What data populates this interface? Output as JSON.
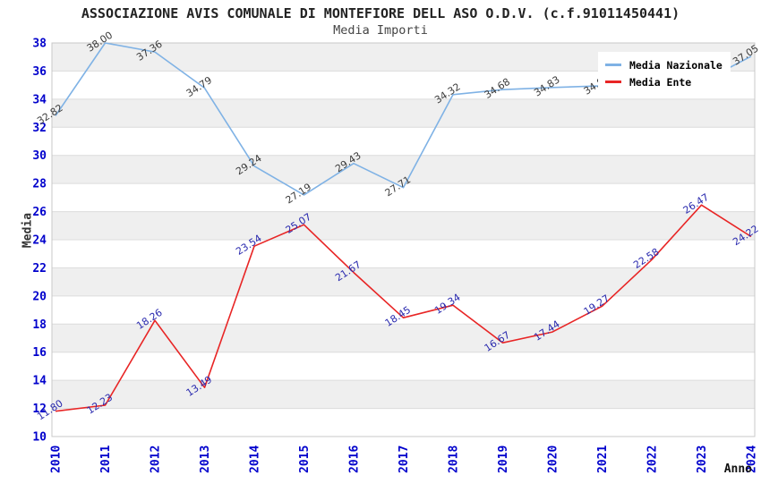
{
  "header": {
    "title": "ASSOCIAZIONE AVIS COMUNALE DI MONTEFIORE DELL ASO O.D.V. (c.f.91011450441)",
    "subtitle": "Media Importi"
  },
  "axes": {
    "y_title": "Media",
    "x_title": "Anno",
    "y_tick_color": "#0000cc",
    "x_tick_color": "#0000cc"
  },
  "legend": {
    "position": "top-right",
    "items": [
      {
        "label": "Media Nazionale",
        "color": "#7fb2e5"
      },
      {
        "label": "Media Ente",
        "color": "#e82525"
      }
    ]
  },
  "colors": {
    "band_fill": "#efefef",
    "plot_border": "#c8c8c8",
    "gridline": "#dcdcdc",
    "background": "#ffffff"
  },
  "chart_data": {
    "type": "line",
    "title": "ASSOCIAZIONE AVIS COMUNALE DI MONTEFIORE DELL ASO O.D.V. (c.f.91011450441)",
    "subtitle": "Media Importi",
    "xlabel": "Anno",
    "ylabel": "Media",
    "categories": [
      "2010",
      "2011",
      "2012",
      "2013",
      "2014",
      "2015",
      "2016",
      "2017",
      "2018",
      "2019",
      "2020",
      "2021",
      "2022",
      "2023",
      "2024"
    ],
    "ylim": [
      10,
      38
    ],
    "y_tick_step": 2,
    "grid": "horizontal-bands",
    "legend_position": "top-right",
    "series": [
      {
        "name": "Media Nazionale",
        "color": "#7fb2e5",
        "label_color": "#3c3c3c",
        "values": [
          32.82,
          38.0,
          37.36,
          34.79,
          29.24,
          27.19,
          29.43,
          27.71,
          34.32,
          34.68,
          34.83,
          34.95,
          35.05,
          35.2,
          37.05
        ],
        "hidden_label_indices": [
          12,
          13
        ]
      },
      {
        "name": "Media Ente",
        "color": "#e82525",
        "label_color": "#2929ae",
        "values": [
          11.8,
          12.23,
          18.26,
          13.49,
          23.54,
          25.07,
          21.67,
          18.45,
          19.34,
          16.67,
          17.44,
          19.27,
          22.58,
          26.47,
          24.22
        ],
        "hidden_label_indices": []
      }
    ]
  }
}
